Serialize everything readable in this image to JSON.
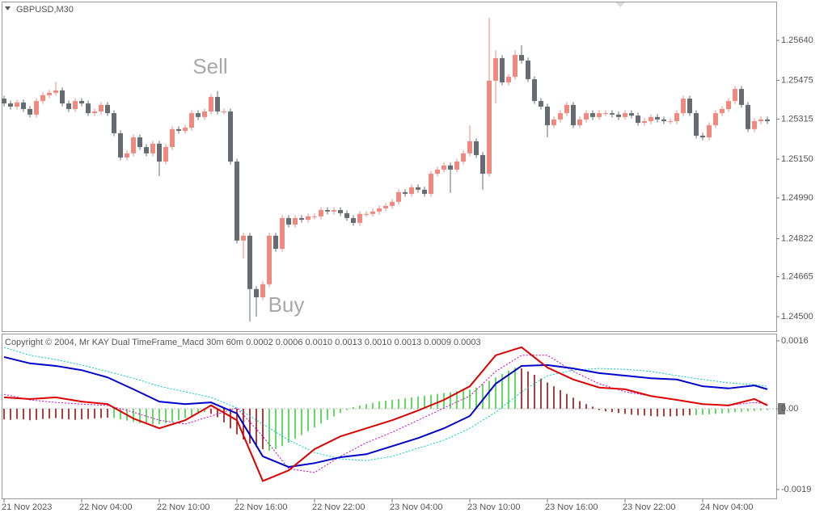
{
  "chart_data": [
    {
      "type": "candlestick",
      "title": "GBPUSD,M30",
      "annotations": [
        "Sell",
        "Buy"
      ],
      "up_color": "#ef8a80",
      "down_color": "#676c73",
      "ylim": [
        1.2444,
        1.25797
      ],
      "yticks": [
        {
          "value": 1.2564,
          "label": "1.25640"
        },
        1.25475,
        1.25315,
        {
          "value": 1.2515,
          "label": "1.25150"
        },
        {
          "value": 1.2499,
          "label": "1.24990"
        },
        1.24822,
        1.24665,
        {
          "value": 1.245,
          "label": "1.24500"
        }
      ],
      "open": [
        1.254,
        1.2538,
        1.25367,
        1.25384,
        1.25357,
        1.25334,
        1.2539,
        1.25414,
        1.25424,
        1.25434,
        1.2538,
        1.25357,
        1.2539,
        1.2538,
        1.2534,
        1.25347,
        1.25374,
        1.2534,
        1.25257,
        1.25157,
        1.25174,
        1.2524,
        1.252,
        1.25174,
        1.25214,
        1.2514,
        1.252,
        1.25274,
        1.25267,
        1.2528,
        1.2534,
        1.25324,
        1.25347,
        1.25407,
        1.25347,
        1.25347,
        1.2514,
        1.24814,
        1.24834,
        1.24614,
        1.2458,
        1.24634,
        1.24834,
        1.2478,
        1.24907,
        1.2488,
        1.24907,
        1.249,
        1.24914,
        1.24914,
        1.2494,
        1.24934,
        1.2494,
        1.24927,
        1.24907,
        1.24887,
        1.24924,
        1.24924,
        1.24934,
        1.24947,
        1.24957,
        1.24974,
        1.25014,
        1.25007,
        1.25034,
        1.25024,
        1.25007,
        1.2509,
        1.25107,
        1.25124,
        1.25107,
        1.2514,
        1.25174,
        1.25224,
        1.25167,
        1.2509,
        1.25474,
        1.25567,
        1.25467,
        1.2549,
        1.2558,
        1.25557,
        1.2548,
        1.2539,
        1.25367,
        1.2529,
        1.25314,
        1.2534,
        1.25374,
        1.2529,
        1.25314,
        1.2534,
        1.25324,
        1.2534,
        1.2534,
        1.25334,
        1.25324,
        1.2534,
        1.2533,
        1.253,
        1.25307,
        1.25324,
        1.25314,
        1.25307,
        1.25307,
        1.2534,
        1.254,
        1.2534,
        1.25247,
        1.2524,
        1.2529,
        1.2534,
        1.25357,
        1.2539,
        1.2544,
        1.25374,
        1.25274,
        1.25307,
        1.25314
      ],
      "high": [
        1.25412,
        1.25392,
        1.25396,
        1.25396,
        1.25369,
        1.25402,
        1.25426,
        1.25436,
        1.2547,
        1.25446,
        1.25392,
        1.25402,
        1.25402,
        1.25392,
        1.25359,
        1.25386,
        1.25386,
        1.25352,
        1.25269,
        1.25186,
        1.25252,
        1.25252,
        1.25212,
        1.25226,
        1.25226,
        1.25212,
        1.25286,
        1.25286,
        1.25292,
        1.25352,
        1.25352,
        1.25359,
        1.25419,
        1.25431,
        1.25359,
        1.25359,
        1.25152,
        1.24846,
        1.24846,
        1.24626,
        1.24646,
        1.24846,
        1.24846,
        1.24919,
        1.24919,
        1.24919,
        1.24919,
        1.24926,
        1.24926,
        1.24952,
        1.24952,
        1.24952,
        1.24952,
        1.24939,
        1.24919,
        1.24936,
        1.24936,
        1.24946,
        1.24959,
        1.24969,
        1.24986,
        1.25026,
        1.25026,
        1.25046,
        1.25046,
        1.25036,
        1.25102,
        1.25119,
        1.25136,
        1.25136,
        1.25152,
        1.25186,
        1.2529,
        1.25236,
        1.25179,
        1.25734,
        1.256,
        1.25579,
        1.25502,
        1.256,
        1.2562,
        1.25569,
        1.25492,
        1.25402,
        1.25379,
        1.25326,
        1.25352,
        1.25386,
        1.25386,
        1.25326,
        1.25352,
        1.25352,
        1.25352,
        1.25352,
        1.25352,
        1.25346,
        1.25352,
        1.25352,
        1.25342,
        1.25319,
        1.25336,
        1.25336,
        1.25326,
        1.25319,
        1.25352,
        1.25412,
        1.25412,
        1.25352,
        1.25259,
        1.25302,
        1.25352,
        1.25369,
        1.25402,
        1.25452,
        1.25452,
        1.25386,
        1.25319,
        1.25326,
        1.25326
      ],
      "low": [
        1.25368,
        1.25355,
        1.25355,
        1.25345,
        1.25322,
        1.25322,
        1.25378,
        1.25402,
        1.25412,
        1.25368,
        1.25345,
        1.25345,
        1.25368,
        1.25328,
        1.25328,
        1.25335,
        1.25328,
        1.25245,
        1.25145,
        1.25145,
        1.25162,
        1.25188,
        1.25162,
        1.25162,
        1.2508,
        1.25128,
        1.25188,
        1.25255,
        1.25255,
        1.25268,
        1.25312,
        1.25312,
        1.25335,
        1.25335,
        1.25335,
        1.25128,
        1.24802,
        1.2474,
        1.2448,
        1.245,
        1.24568,
        1.24622,
        1.24768,
        1.24768,
        1.24868,
        1.24868,
        1.24888,
        1.24888,
        1.24902,
        1.24902,
        1.24922,
        1.24922,
        1.24915,
        1.24895,
        1.24875,
        1.24875,
        1.24912,
        1.24912,
        1.24922,
        1.24935,
        1.24945,
        1.24962,
        1.24995,
        1.24995,
        1.25012,
        1.24995,
        1.24995,
        1.25078,
        1.25095,
        1.2501,
        1.25095,
        1.25128,
        1.25162,
        1.25155,
        1.25024,
        1.25078,
        1.2538,
        1.25455,
        1.25455,
        1.25478,
        1.25545,
        1.25468,
        1.25378,
        1.25355,
        1.2524,
        1.25278,
        1.25302,
        1.25328,
        1.25278,
        1.25278,
        1.25302,
        1.25312,
        1.25312,
        1.25328,
        1.25322,
        1.25312,
        1.25312,
        1.25318,
        1.25288,
        1.25288,
        1.25295,
        1.25302,
        1.25295,
        1.25295,
        1.25295,
        1.25328,
        1.25328,
        1.25235,
        1.25228,
        1.25228,
        1.25278,
        1.25328,
        1.25345,
        1.25378,
        1.25362,
        1.25262,
        1.25262,
        1.25295,
        1.25295
      ],
      "close": [
        1.2538,
        1.25367,
        1.25384,
        1.25357,
        1.25334,
        1.2539,
        1.25414,
        1.25424,
        1.25434,
        1.2538,
        1.25357,
        1.2539,
        1.2538,
        1.2534,
        1.25347,
        1.25374,
        1.2534,
        1.25257,
        1.25157,
        1.25174,
        1.2524,
        1.252,
        1.25174,
        1.25214,
        1.2514,
        1.252,
        1.25274,
        1.25267,
        1.2528,
        1.2534,
        1.25324,
        1.25347,
        1.25407,
        1.25347,
        1.25347,
        1.2514,
        1.24814,
        1.24834,
        1.24614,
        1.2458,
        1.24634,
        1.24834,
        1.2478,
        1.24907,
        1.2488,
        1.24907,
        1.249,
        1.24914,
        1.24914,
        1.2494,
        1.24934,
        1.2494,
        1.24927,
        1.24907,
        1.24887,
        1.24924,
        1.24924,
        1.24934,
        1.24947,
        1.24957,
        1.24974,
        1.25014,
        1.25007,
        1.25034,
        1.25024,
        1.25007,
        1.2509,
        1.25107,
        1.25124,
        1.25107,
        1.2514,
        1.25174,
        1.25224,
        1.25167,
        1.2509,
        1.25474,
        1.25567,
        1.25467,
        1.2549,
        1.2558,
        1.25557,
        1.2548,
        1.2539,
        1.25367,
        1.2529,
        1.25314,
        1.2534,
        1.25374,
        1.2529,
        1.25314,
        1.2534,
        1.25324,
        1.2534,
        1.2534,
        1.25334,
        1.25324,
        1.2534,
        1.2533,
        1.253,
        1.25307,
        1.25324,
        1.25314,
        1.25307,
        1.25307,
        1.2534,
        1.254,
        1.2534,
        1.25247,
        1.2524,
        1.2529,
        1.2534,
        1.25357,
        1.2539,
        1.2544,
        1.25374,
        1.25274,
        1.25307,
        1.25314,
        1.25307
      ]
    },
    {
      "type": "macd",
      "title": "Copyright © 2004, Mr KAY Dual TimeFrame_Macd 30m 60m  0.0002 0.0006 0.0010 0.0013 0.0010 0.0013 0.0009 0.0003",
      "ylim": [
        -0.00213,
        0.00177
      ],
      "yticks": [
        0.0016,
        {
          "value": 0,
          "label": "0.00"
        },
        -0.0019
      ],
      "xticks": [
        {
          "value": 0,
          "label": "21 Nov 2023"
        },
        {
          "value": 12,
          "label": "22 Nov 04:00"
        },
        {
          "value": 24,
          "label": "22 Nov 10:00"
        },
        {
          "value": 36,
          "label": "22 Nov 16:00"
        },
        {
          "value": 48,
          "label": "22 Nov 22:00"
        },
        {
          "value": 60,
          "label": "23 Nov 04:00"
        },
        {
          "value": 72,
          "label": "23 Nov 10:00"
        },
        {
          "value": 84,
          "label": "23 Nov 16:00"
        },
        {
          "value": 96,
          "label": "23 Nov 22:00"
        },
        {
          "value": 108,
          "label": "24 Nov 04:00"
        }
      ],
      "x": [
        0,
        4,
        8,
        12,
        16,
        20,
        24,
        28,
        32,
        36,
        40,
        44,
        48,
        52,
        56,
        60,
        64,
        68,
        72,
        76,
        80,
        84,
        88,
        92,
        96,
        100,
        104,
        108,
        112,
        116,
        118
      ],
      "series": [
        {
          "color": "#00cccc",
          "style": "dotted",
          "values": [
            0.00145,
            0.00126,
            0.00116,
            0.00103,
            0.00088,
            0.00072,
            0.00053,
            0.0004,
            0.00027,
            2e-05,
            -0.00036,
            -0.00074,
            -0.00103,
            -0.00118,
            -0.00122,
            -0.00112,
            -0.00093,
            -0.00074,
            -0.00046,
            -8e-05,
            0.0004,
            0.00078,
            0.00091,
            0.00095,
            0.00093,
            0.00088,
            0.00078,
            0.00069,
            0.00061,
            0.00057,
            0.00053
          ]
        },
        {
          "color": "#cc00cc",
          "style": "dotted",
          "values": [
            0.00034,
            0.00021,
            0.00015,
            0.00011,
            8e-05,
            -8e-05,
            -0.00027,
            -0.00036,
            -0.00017,
            2e-05,
            -0.00065,
            -0.00141,
            -0.0015,
            -0.00112,
            -0.0008,
            -0.00055,
            -0.00027,
            2e-05,
            0.0003,
            0.00088,
            0.00126,
            0.00126,
            0.00088,
            0.00059,
            0.0004,
            0.0003,
            0.00021,
            0.00011,
            8e-05,
            0.00015,
            0.00011
          ]
        },
        {
          "color": "#0000cc",
          "style": "solid",
          "values": [
            0.00122,
            0.00107,
            0.00101,
            0.00091,
            0.00074,
            0.00046,
            0.00017,
            0.00011,
            0.00015,
            -0.00011,
            -0.00112,
            -0.00137,
            -0.00128,
            -0.00114,
            -0.00107,
            -0.00088,
            -0.00069,
            -0.00046,
            -0.00017,
            0.00059,
            0.00101,
            0.00103,
            0.00095,
            0.00084,
            0.00078,
            0.00072,
            0.00069,
            0.00053,
            0.00048,
            0.00055,
            0.00046
          ]
        },
        {
          "color": "#dd0000",
          "style": "solid",
          "values": [
            0.00027,
            0.00023,
            0.00027,
            0.00017,
            0.00011,
            -0.00023,
            -0.00046,
            -0.00027,
            8e-05,
            -0.00027,
            -0.0017,
            -0.00145,
            -0.00095,
            -0.00065,
            -0.00046,
            -0.00027,
            -4e-05,
            0.00021,
            0.00053,
            0.00126,
            0.00145,
            0.00097,
            0.00069,
            0.0005,
            0.00046,
            0.0003,
            0.00021,
            0.00011,
            8e-05,
            0.00023,
            8e-05
          ]
        }
      ],
      "histogram": [
        {
          "color": "#33cc33",
          "values": [
            null,
            null,
            null,
            null,
            null,
            null,
            null,
            null,
            null,
            null,
            null,
            null,
            null,
            null,
            null,
            null,
            null,
            -0.00022,
            -0.00025,
            -0.00028,
            -0.00031,
            -0.00034,
            -0.00036,
            -0.00037,
            -0.00036,
            -0.00034,
            -0.00031,
            -0.00027,
            -0.00022,
            -0.00017,
            -0.00012,
            -8e-05,
            null,
            null,
            null,
            null,
            null,
            null,
            null,
            null,
            null,
            -0.00099,
            -0.00095,
            -0.00088,
            -0.0008,
            -0.00071,
            -0.00062,
            -0.00053,
            -0.00044,
            -0.00035,
            -0.00026,
            -0.00018,
            -0.0001,
            -3e-05,
            4e-05,
            8e-05,
            0.00011,
            0.00014,
            0.00017,
            0.00019,
            0.00021,
            0.00023,
            0.00025,
            0.00027,
            0.00029,
            0.00031,
            0.00033,
            0.00035,
            0.00037,
            0.00039,
            0.00041,
            0.00043,
            0.00045,
            0.0005,
            0.00058,
            0.00066,
            0.00074,
            0.00082,
            0.0009,
            0.00097,
            null,
            null,
            null,
            null,
            null,
            null,
            null,
            null,
            null,
            null,
            null,
            null,
            null,
            null,
            null,
            null,
            null,
            null,
            null,
            null,
            null,
            null,
            null,
            null,
            null,
            null,
            null,
            -0.00015,
            -0.00014,
            -0.00013,
            -0.00012,
            -0.00011,
            -0.0001,
            -8e-05,
            -7e-05,
            -6e-05,
            -5e-05,
            -4e-05,
            -3e-05
          ]
        },
        {
          "color": "#8b0000",
          "values": [
            -0.00025,
            -0.00026,
            -0.00024,
            -0.00025,
            -0.00027,
            -0.00026,
            -0.00024,
            -0.00023,
            -0.00022,
            -0.00024,
            -0.00025,
            -0.00026,
            -0.00025,
            -0.00024,
            -0.00023,
            -0.00022,
            -0.00021,
            null,
            null,
            null,
            null,
            null,
            null,
            null,
            null,
            null,
            null,
            null,
            null,
            null,
            null,
            null,
            -0.00012,
            -0.0002,
            -0.00032,
            -0.00046,
            -0.0006,
            -0.00072,
            -0.00082,
            -0.0009,
            -0.00095,
            null,
            null,
            null,
            null,
            null,
            null,
            null,
            null,
            null,
            null,
            null,
            null,
            null,
            null,
            null,
            null,
            null,
            null,
            null,
            null,
            null,
            null,
            null,
            null,
            null,
            null,
            null,
            null,
            null,
            null,
            null,
            null,
            null,
            null,
            null,
            null,
            null,
            null,
            null,
            0.00095,
            0.00088,
            0.0008,
            0.00071,
            0.00062,
            0.00053,
            0.00044,
            0.00035,
            0.00026,
            0.00018,
            0.00011,
            5e-05,
            -3e-05,
            -6e-05,
            -8e-05,
            -0.0001,
            -0.00012,
            -0.00014,
            -0.00015,
            -0.00016,
            -0.00017,
            -0.00018,
            -0.00018,
            -0.00018,
            -0.00017,
            -0.00016,
            -0.00015,
            null,
            null,
            null,
            null,
            null,
            null,
            null,
            null,
            null,
            null,
            null,
            null
          ]
        }
      ]
    }
  ]
}
